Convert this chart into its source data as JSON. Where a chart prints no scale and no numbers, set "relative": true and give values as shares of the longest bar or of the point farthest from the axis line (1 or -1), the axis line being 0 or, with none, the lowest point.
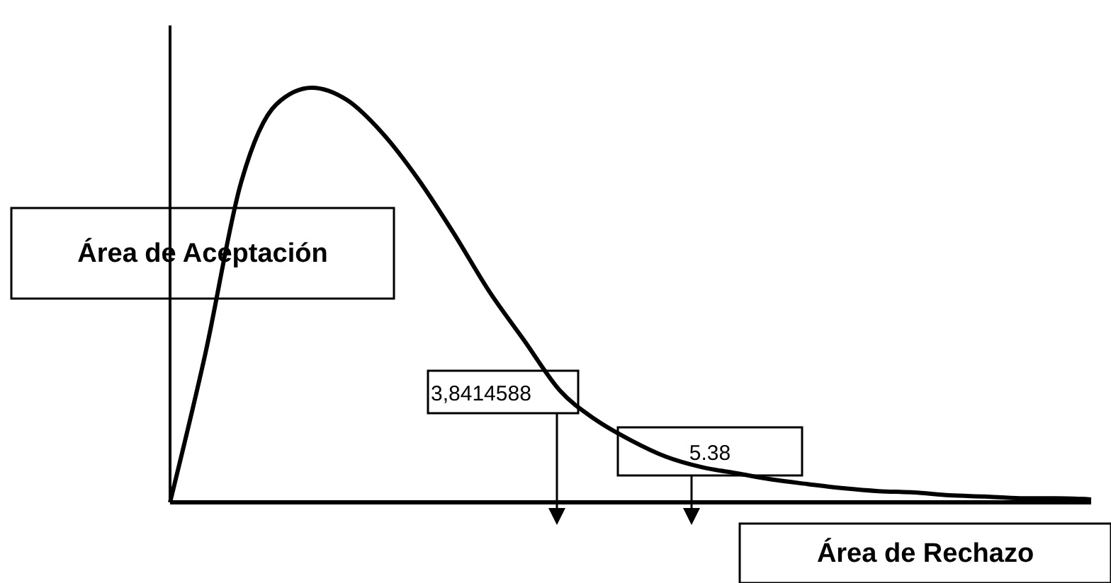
{
  "chart_data": {
    "type": "line",
    "relative": true,
    "color": "#000000",
    "categories": [
      null,
      null,
      null,
      null,
      null,
      null,
      null,
      null,
      null,
      null,
      null,
      null,
      null,
      null,
      null,
      null,
      null,
      null,
      null,
      null,
      null,
      null,
      null,
      null,
      null,
      null,
      null
    ],
    "values": [
      0,
      0.36,
      0.77,
      0.96,
      1,
      0.97,
      0.89,
      0.78,
      0.65,
      0.51,
      0.39,
      0.27,
      0.2,
      0.15,
      0.11,
      0.085,
      0.07,
      0.055,
      0.044,
      0.034,
      0.027,
      0.024,
      0.017,
      0.014,
      0.01,
      0.01,
      0.007
    ],
    "annotations": [
      "Área de Aceptación",
      "3,8414588",
      "5.38",
      "Área de Rechazo"
    ]
  }
}
